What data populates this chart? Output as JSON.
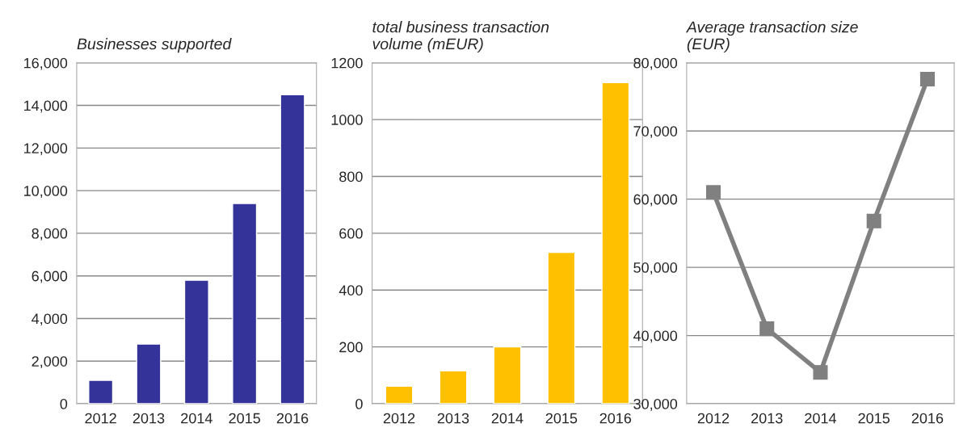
{
  "chart_data": [
    {
      "type": "bar",
      "title": "Businesses supported",
      "categories": [
        "2012",
        "2013",
        "2014",
        "2015",
        "2016"
      ],
      "series": [
        {
          "color": "#333399",
          "values": [
            1100,
            2800,
            5800,
            9400,
            14500
          ]
        }
      ],
      "ylim": [
        0,
        16000
      ],
      "yticks": [
        0,
        {
          "value": 2000,
          "label": "2,000"
        },
        {
          "value": 4000,
          "label": "4,000"
        },
        {
          "value": 6000,
          "label": "6,000"
        },
        {
          "value": 8000,
          "label": "8,000"
        },
        {
          "value": 10000,
          "label": "10,000"
        },
        {
          "value": 12000,
          "label": "12,000"
        },
        {
          "value": 14000,
          "label": "14,000"
        },
        {
          "value": 16000,
          "label": "16,000"
        }
      ],
      "grid": "y"
    },
    {
      "type": "bar",
      "title": "total business transaction\nvolume (mEUR)",
      "categories": [
        "2012",
        "2013",
        "2014",
        "2015",
        "2016"
      ],
      "series": [
        {
          "color": "#ffc000",
          "values": [
            62,
            116,
            200,
            533,
            1130
          ]
        }
      ],
      "ylim": [
        0,
        1200
      ],
      "yticks": [
        0,
        200,
        400,
        600,
        800,
        1000,
        1200
      ],
      "grid": "y"
    },
    {
      "type": "line",
      "title": "Average transaction size\n(EUR)",
      "categories": [
        "2012",
        "2013",
        "2014",
        "2015",
        "2016"
      ],
      "series": [
        {
          "color": "#808080",
          "values": [
            61000,
            41000,
            34600,
            56800,
            77600
          ]
        }
      ],
      "ylim": [
        30000,
        80000
      ],
      "yticks": [
        {
          "value": 30000,
          "label": "30,000"
        },
        {
          "value": 40000,
          "label": "40,000"
        },
        {
          "value": 50000,
          "label": "50,000"
        },
        {
          "value": 60000,
          "label": "60,000"
        },
        {
          "value": 70000,
          "label": "70,000"
        },
        {
          "value": 80000,
          "label": "80,000"
        }
      ],
      "grid": "y",
      "marker": "square",
      "line_style": "solid"
    }
  ]
}
